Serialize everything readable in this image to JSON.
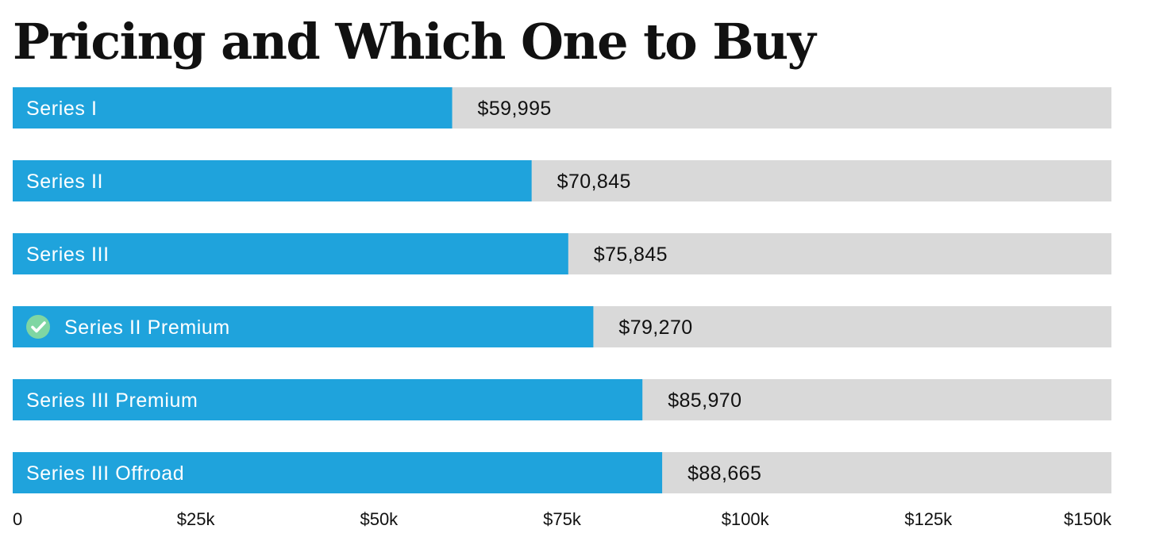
{
  "chart_data": {
    "type": "bar",
    "orientation": "horizontal",
    "title": "Pricing and Which One to Buy",
    "xlabel": "",
    "ylabel": "",
    "xlim": [
      0,
      150000
    ],
    "grid": false,
    "legend": "none",
    "categories": [
      "Series I",
      "Series II",
      "Series III",
      "Series II Premium",
      "Series III Premium",
      "Series III Offroad"
    ],
    "values": [
      59995,
      70845,
      75845,
      79270,
      85970,
      88665
    ],
    "value_labels": [
      "$59,995",
      "$70,845",
      "$75,845",
      "$79,270",
      "$85,970",
      "$88,665"
    ],
    "recommended_index": 3,
    "recommended_icon": "check-circle-icon",
    "ticks": [
      0,
      25000,
      50000,
      75000,
      100000,
      125000,
      150000
    ],
    "tick_labels": [
      "0",
      "$25k",
      "$50k",
      "$75k",
      "$100k",
      "$125k",
      "$150k"
    ],
    "colors": {
      "bar": "#1fa3dc",
      "track": "#d9d9d9",
      "check": "#7fd6a3",
      "text": "#111111",
      "bar_text": "#ffffff"
    }
  }
}
